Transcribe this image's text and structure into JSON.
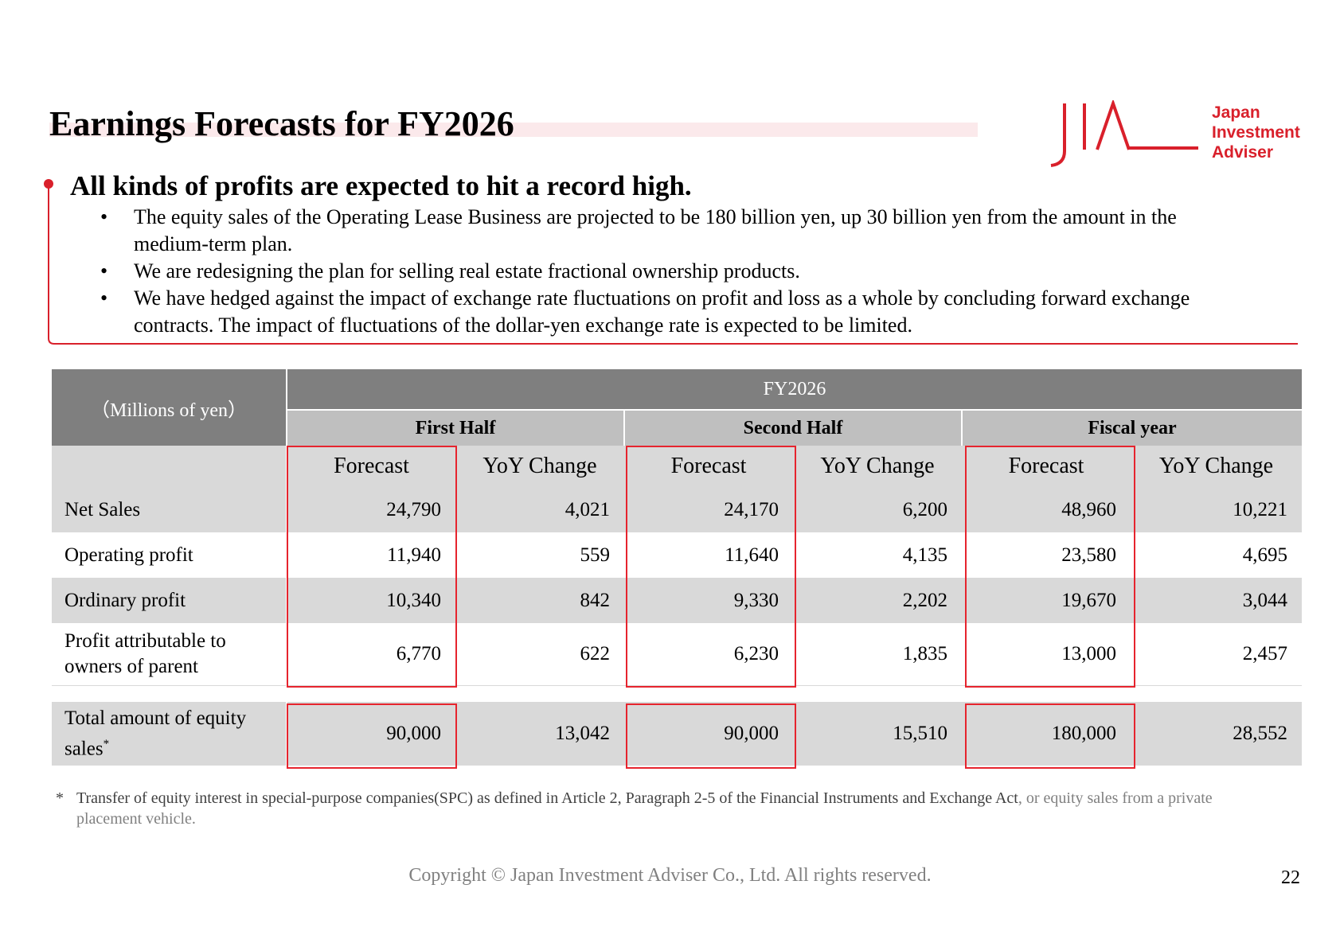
{
  "title": "Earnings Forecasts for FY2026",
  "logo": {
    "mark": "JIA",
    "lines": [
      "Japan",
      "Investment",
      "Adviser"
    ],
    "accent_color": "#d9202b"
  },
  "headline": "All kinds of profits are expected to hit a record high.",
  "bullets": [
    {
      "marker": "•",
      "text": "The equity sales of the Operating Lease Business are projected to be 180 billion yen, up 30 billion yen from the amount in the medium-term plan."
    },
    {
      "marker": "•",
      "text": "We are redesigning the plan for selling real estate fractional ownership products."
    },
    {
      "marker": "•",
      "text": "We have hedged against the impact of exchange rate fluctuations on profit and loss as a whole by concluding forward exchange contracts. The impact of fluctuations of the dollar-yen exchange rate is expected to be limited."
    }
  ],
  "table": {
    "unit": "（Millions of yen）",
    "fy": "FY2026",
    "halves": [
      "First Half",
      "Second Half",
      "Fiscal year"
    ],
    "columns": [
      "Forecast",
      "YoY Change",
      "Forecast",
      "YoY Change",
      "Forecast",
      "YoY Change"
    ],
    "rows": [
      {
        "label": "Net Sales",
        "values": [
          "24,790",
          "4,021",
          "24,170",
          "6,200",
          "48,960",
          "10,221"
        ]
      },
      {
        "label": "Operating profit",
        "values": [
          "11,940",
          "559",
          "11,640",
          "4,135",
          "23,580",
          "4,695"
        ]
      },
      {
        "label": "Ordinary profit",
        "values": [
          "10,340",
          "842",
          "9,330",
          "2,202",
          "19,670",
          "3,044"
        ]
      },
      {
        "label": "Profit attributable to owners of parent",
        "values": [
          "6,770",
          "622",
          "6,230",
          "1,835",
          "13,000",
          "2,457"
        ]
      }
    ],
    "total": {
      "label": "Total amount of equity sales",
      "sup": "*",
      "values": [
        "90,000",
        "13,042",
        "90,000",
        "15,510",
        "180,000",
        "28,552"
      ]
    },
    "highlight_color": "#e6242e"
  },
  "footnote": {
    "marker": "*",
    "text_main": "Transfer of equity interest in special-purpose companies(SPC) as defined in Article 2, Paragraph 2-5 of the Financial Instruments and Exchange Act",
    "text_extra": ", or equity sales from a private placement vehicle."
  },
  "copyright": "Copyright © Japan Investment Adviser Co., Ltd. All rights reserved.",
  "page_number": "22"
}
